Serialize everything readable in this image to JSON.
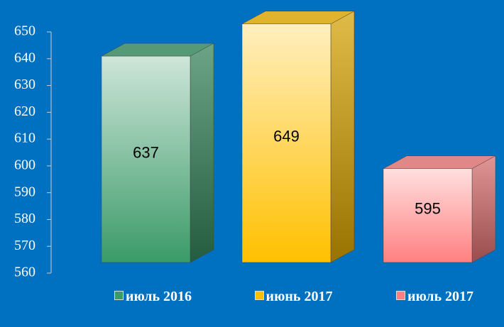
{
  "chart_data": {
    "type": "bar3d",
    "categories": [
      "июль 2016",
      "июнь 2017",
      "июль 2017"
    ],
    "values": [
      637,
      649,
      595
    ],
    "colors": [
      "#3a9a68",
      "#ffc000",
      "#ff8080"
    ],
    "ylim": [
      560,
      650
    ],
    "yticks": [
      560,
      570,
      580,
      590,
      600,
      610,
      620,
      630,
      640,
      650
    ]
  }
}
